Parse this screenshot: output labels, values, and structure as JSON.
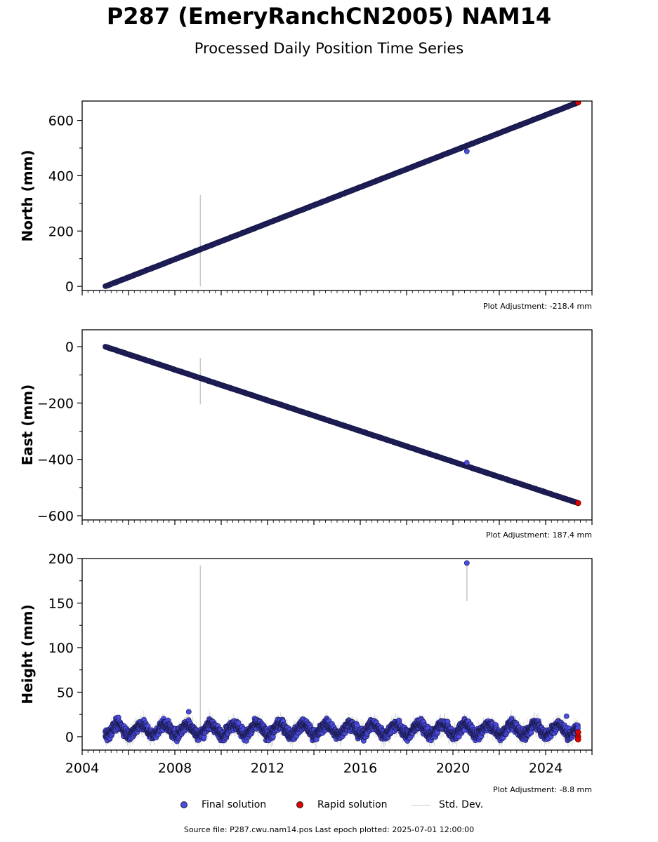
{
  "title": "P287 (EmeryRanchCN2005) NAM14",
  "subtitle": "Processed Daily Position Time Series",
  "footer": "Source file: P287.cwu.nam14.pos  Last epoch plotted: 2025-07-01 12:00:00",
  "legend": {
    "final": "Final solution",
    "rapid": "Rapid solution",
    "std": "Std. Dev."
  },
  "colors": {
    "final": "#4b4be6",
    "final_edge": "#1a1a4a",
    "rapid": "#e00000",
    "std": "#c8c8c8"
  },
  "chart_data": [
    {
      "type": "scatter",
      "ylabel": "North (mm)",
      "adjustment": "Plot Adjustment: -218.4 mm",
      "xlim": [
        2004,
        2026
      ],
      "ylim": [
        -15,
        670
      ],
      "yticks": [
        0,
        200,
        400,
        600
      ],
      "xtick_labels_shown": false,
      "trend": {
        "start": [
          2005.0,
          0
        ],
        "end": [
          2025.4,
          665
        ]
      },
      "rapid_end": [
        2025.4,
        665
      ],
      "outliers": [
        {
          "x": 2020.6,
          "y": 488
        }
      ],
      "errorbars": [
        {
          "x": 2009.1,
          "y0": 0,
          "y1": 330
        }
      ]
    },
    {
      "type": "scatter",
      "ylabel": "East (mm)",
      "adjustment": "Plot Adjustment: 187.4 mm",
      "xlim": [
        2004,
        2026
      ],
      "ylim": [
        -615,
        60
      ],
      "yticks": [
        0,
        -200,
        -400,
        -600
      ],
      "ytick_labels": [
        "0",
        "−200",
        "−400",
        "−600"
      ],
      "xtick_labels_shown": false,
      "trend": {
        "start": [
          2005.0,
          0
        ],
        "end": [
          2025.4,
          -555
        ]
      },
      "rapid_end": [
        2025.4,
        -555
      ],
      "outliers": [
        {
          "x": 2020.6,
          "y": -412
        }
      ],
      "errorbars": [
        {
          "x": 2009.1,
          "y0": -205,
          "y1": -40
        }
      ]
    },
    {
      "type": "scatter",
      "ylabel": "Height (mm)",
      "adjustment": "Plot Adjustment: -8.8 mm",
      "xlim": [
        2004,
        2026
      ],
      "ylim": [
        -15,
        200
      ],
      "yticks": [
        0,
        50,
        100,
        150,
        200
      ],
      "xticks": [
        2004,
        2008,
        2012,
        2016,
        2020,
        2024
      ],
      "xtick_labels_shown": true,
      "noise_band": {
        "x_start": 2005.0,
        "x_end": 2025.4,
        "center": 8,
        "amplitude": 10,
        "annual_period": 1.0
      },
      "rapid_points": [
        {
          "x": 2025.4,
          "y": 0
        },
        {
          "x": 2025.4,
          "y": 5
        },
        {
          "x": 2025.4,
          "y": -3
        }
      ],
      "outliers": [
        {
          "x": 2020.6,
          "y": 195
        },
        {
          "x": 2008.6,
          "y": 28
        },
        {
          "x": 2024.9,
          "y": 23
        }
      ],
      "errorbars": [
        {
          "x": 2009.1,
          "y0": -5,
          "y1": 192
        },
        {
          "x": 2020.6,
          "y0": 152,
          "y1": 195
        }
      ]
    }
  ]
}
